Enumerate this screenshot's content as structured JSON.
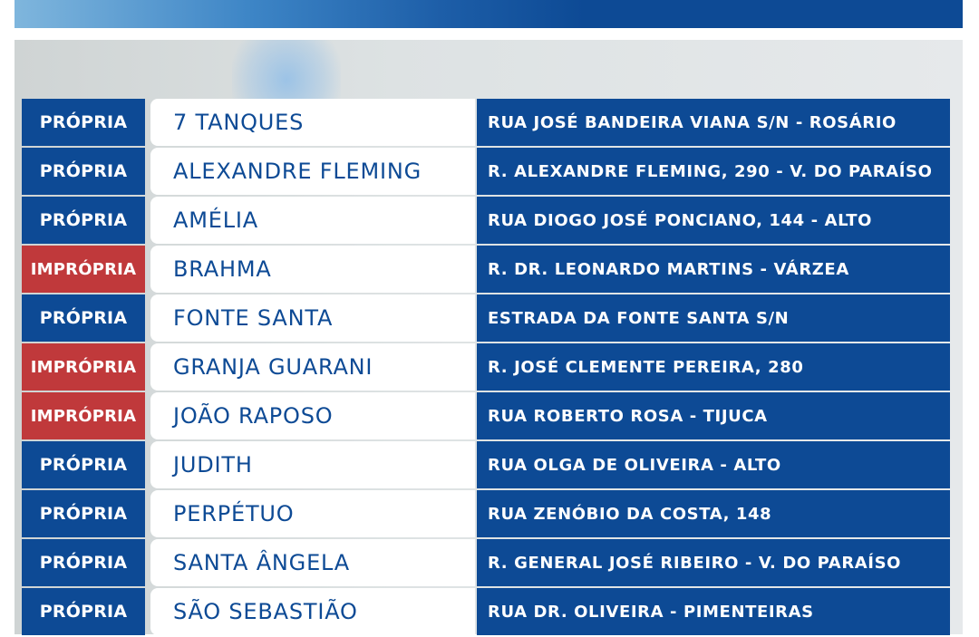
{
  "colors": {
    "propria": "#0d4a95",
    "impropria": "#c0393b",
    "name_bg": "#ffffff",
    "address_bg": "#0d4a95"
  },
  "rows": [
    {
      "status": "PRÓPRIA",
      "name": "7 TANQUES",
      "address": "RUA JOSÉ BANDEIRA VIANA S/N - ROSÁRIO"
    },
    {
      "status": "PRÓPRIA",
      "name": "ALEXANDRE FLEMING",
      "address": "R. ALEXANDRE FLEMING, 290 - V. DO PARAÍSO"
    },
    {
      "status": "PRÓPRIA",
      "name": "AMÉLIA",
      "address": "RUA DIOGO JOSÉ PONCIANO, 144 - ALTO"
    },
    {
      "status": "IMPRÓPRIA",
      "name": "BRAHMA",
      "address": "R. DR. LEONARDO MARTINS - VÁRZEA"
    },
    {
      "status": "PRÓPRIA",
      "name": "FONTE SANTA",
      "address": "ESTRADA DA FONTE SANTA S/N"
    },
    {
      "status": "IMPRÓPRIA",
      "name": "GRANJA GUARANI",
      "address": "R. JOSÉ CLEMENTE PEREIRA, 280"
    },
    {
      "status": "IMPRÓPRIA",
      "name": "JOÃO RAPOSO",
      "address": "RUA ROBERTO ROSA - TIJUCA"
    },
    {
      "status": "PRÓPRIA",
      "name": "JUDITH",
      "address": "RUA OLGA DE OLIVEIRA - ALTO"
    },
    {
      "status": "PRÓPRIA",
      "name": "PERPÉTUO",
      "address": "RUA ZENÓBIO DA COSTA, 148"
    },
    {
      "status": "PRÓPRIA",
      "name": "SANTA ÂNGELA",
      "address": "R. GENERAL JOSÉ RIBEIRO - V. DO PARAÍSO"
    },
    {
      "status": "PRÓPRIA",
      "name": "SÃO SEBASTIÃO",
      "address": "RUA DR. OLIVEIRA - PIMENTEIRAS"
    }
  ]
}
